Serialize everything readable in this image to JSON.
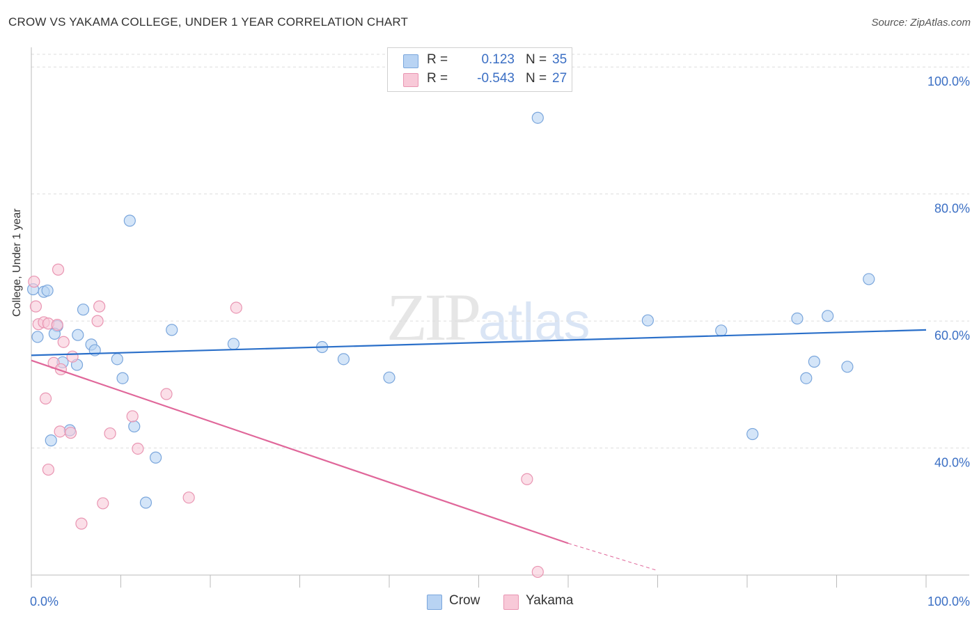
{
  "header": {
    "title": "CROW VS YAKAMA COLLEGE, UNDER 1 YEAR CORRELATION CHART",
    "source": "Source: ZipAtlas.com"
  },
  "legend": {
    "rows": [
      {
        "r_label": "R =",
        "r_value": "0.123",
        "n_label": "N =",
        "n_value": "35"
      },
      {
        "r_label": "R =",
        "r_value": "-0.543",
        "n_label": "N =",
        "n_value": "27"
      }
    ]
  },
  "bottom_legend": [
    {
      "label": "Crow"
    },
    {
      "label": "Yakama"
    }
  ],
  "watermark": {
    "zip": "ZIP",
    "atlas": "atlas"
  },
  "colors": {
    "crow_fill": "#b8d3f3",
    "crow_stroke": "#7aa6dc",
    "crow_line": "#2a6fc9",
    "yakama_fill": "#f8c9d8",
    "yakama_stroke": "#e995b2",
    "yakama_line": "#e0679a",
    "tick_label": "#3b6fc4",
    "grid": "#dddddd"
  },
  "chart_data": {
    "type": "scatter",
    "title": "CROW VS YAKAMA COLLEGE, UNDER 1 YEAR CORRELATION CHART",
    "xlabel": "",
    "ylabel": "College, Under 1 year",
    "xlim": [
      0,
      100
    ],
    "ylim": [
      20,
      102
    ],
    "x_tick_labels": [
      "0.0%",
      "100.0%"
    ],
    "y_ticks": [
      40,
      60,
      80,
      100
    ],
    "y_tick_labels": [
      "40.0%",
      "60.0%",
      "80.0%",
      "100.0%"
    ],
    "grid": "horizontal-dashed",
    "series": [
      {
        "name": "Crow",
        "r": 0.123,
        "n": 35,
        "points": [
          [
            0.2,
            65.0
          ],
          [
            1.4,
            64.6
          ],
          [
            1.8,
            64.8
          ],
          [
            0.7,
            57.5
          ],
          [
            2.9,
            59.2
          ],
          [
            2.6,
            58.0
          ],
          [
            3.5,
            53.5
          ],
          [
            5.1,
            53.1
          ],
          [
            5.2,
            57.8
          ],
          [
            5.8,
            61.8
          ],
          [
            6.7,
            56.3
          ],
          [
            7.1,
            55.4
          ],
          [
            9.6,
            54.0
          ],
          [
            10.2,
            51.0
          ],
          [
            11.0,
            75.8
          ],
          [
            11.5,
            43.4
          ],
          [
            12.8,
            31.4
          ],
          [
            13.9,
            38.5
          ],
          [
            15.7,
            58.6
          ],
          [
            2.2,
            41.2
          ],
          [
            4.3,
            42.8
          ],
          [
            22.6,
            56.4
          ],
          [
            32.5,
            55.9
          ],
          [
            34.9,
            54.0
          ],
          [
            40.0,
            51.1
          ],
          [
            56.6,
            92.0
          ],
          [
            68.9,
            60.1
          ],
          [
            77.1,
            58.5
          ],
          [
            80.6,
            42.2
          ],
          [
            85.6,
            60.4
          ],
          [
            86.6,
            51.0
          ],
          [
            87.5,
            53.6
          ],
          [
            89.0,
            60.8
          ],
          [
            91.2,
            52.8
          ],
          [
            93.6,
            66.6
          ]
        ],
        "trend": {
          "x": [
            0,
            100
          ],
          "y": [
            54.6,
            58.6
          ]
        }
      },
      {
        "name": "Yakama",
        "r": -0.543,
        "n": 27,
        "points": [
          [
            0.3,
            66.2
          ],
          [
            0.5,
            62.3
          ],
          [
            0.8,
            59.5
          ],
          [
            1.4,
            59.8
          ],
          [
            1.9,
            59.6
          ],
          [
            2.5,
            53.4
          ],
          [
            2.9,
            59.4
          ],
          [
            3.0,
            68.1
          ],
          [
            3.3,
            52.4
          ],
          [
            3.6,
            56.7
          ],
          [
            4.6,
            54.4
          ],
          [
            1.6,
            47.8
          ],
          [
            1.9,
            36.6
          ],
          [
            3.2,
            42.6
          ],
          [
            4.4,
            42.4
          ],
          [
            5.6,
            28.1
          ],
          [
            7.4,
            60.0
          ],
          [
            7.6,
            62.3
          ],
          [
            8.0,
            31.3
          ],
          [
            8.8,
            42.3
          ],
          [
            11.3,
            45.0
          ],
          [
            11.9,
            39.9
          ],
          [
            15.1,
            48.5
          ],
          [
            17.6,
            32.2
          ],
          [
            22.9,
            62.1
          ],
          [
            55.4,
            35.1
          ],
          [
            56.6,
            20.5
          ]
        ],
        "trend": {
          "x": [
            0,
            60
          ],
          "y": [
            53.8,
            25.0
          ]
        },
        "trend_dashed": {
          "x": [
            60,
            70
          ],
          "y": [
            25.0,
            20.7
          ]
        }
      }
    ]
  }
}
